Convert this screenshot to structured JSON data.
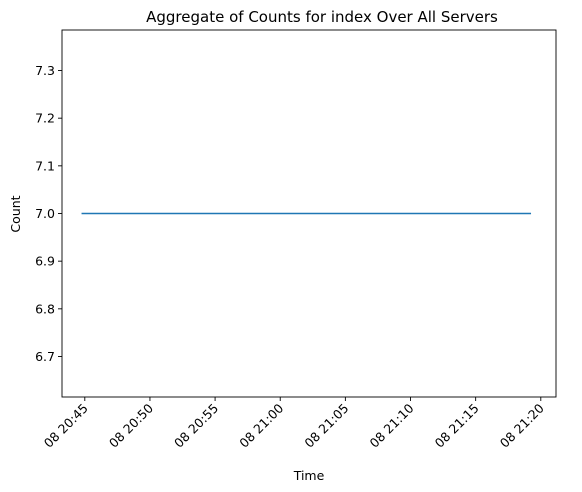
{
  "chart_data": {
    "type": "line",
    "title": "Aggregate of Counts for index Over All Servers",
    "xlabel": "Time",
    "ylabel": "Count",
    "x_ticks": [
      "08 20:45",
      "08 20:50",
      "08 20:55",
      "08 21:00",
      "08 21:05",
      "08 21:10",
      "08 21:15",
      "08 21:20"
    ],
    "x_tick_values": [
      "20:45",
      "20:50",
      "20:55",
      "21:00",
      "21:05",
      "21:10",
      "21:15",
      "21:20"
    ],
    "xlim": [
      "20:43:15",
      "21:21:10"
    ],
    "y_ticks": [
      "6.7",
      "6.8",
      "6.9",
      "7.0",
      "7.1",
      "7.2",
      "7.3"
    ],
    "y_tick_values": [
      6.7,
      6.8,
      6.9,
      7.0,
      7.1,
      7.2,
      7.3
    ],
    "ylim": [
      6.615,
      7.385
    ],
    "grid": false,
    "series": [
      {
        "color": "#1f77b4",
        "x": [
          "20:44:45",
          "21:19:15"
        ],
        "y": [
          7.0,
          7.0
        ]
      }
    ]
  }
}
